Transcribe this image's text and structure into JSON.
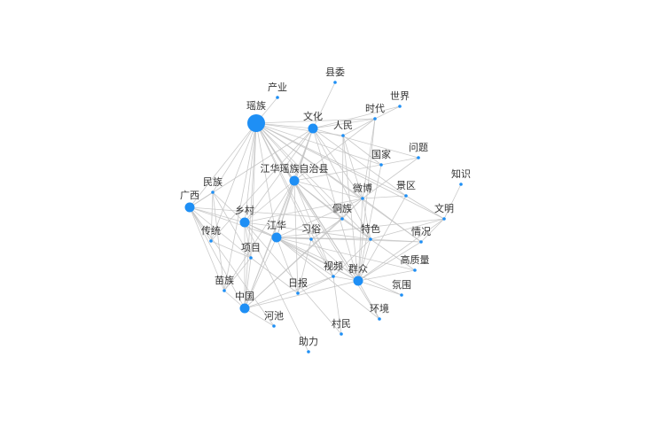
{
  "chart_data": {
    "type": "network",
    "node_color": "#1e8ff5",
    "edge_color": "#c4c4c4",
    "nodes": [
      {
        "id": "yaozu",
        "label": "瑶族",
        "size": "large"
      },
      {
        "id": "wenhua",
        "label": "文化",
        "size": "medium"
      },
      {
        "id": "zizhixian",
        "label": "江华瑶族自治县",
        "size": "medium"
      },
      {
        "id": "guangxi",
        "label": "广西",
        "size": "medium"
      },
      {
        "id": "xiangcun",
        "label": "乡村",
        "size": "medium"
      },
      {
        "id": "jianghua",
        "label": "江华",
        "size": "medium"
      },
      {
        "id": "zhongguo",
        "label": "中国",
        "size": "medium"
      },
      {
        "id": "qunzhong",
        "label": "群众",
        "size": "medium"
      },
      {
        "id": "chanye",
        "label": "产业",
        "size": "small"
      },
      {
        "id": "xianwei",
        "label": "县委",
        "size": "small"
      },
      {
        "id": "shijie",
        "label": "世界",
        "size": "small"
      },
      {
        "id": "shidai",
        "label": "时代",
        "size": "small"
      },
      {
        "id": "renmin",
        "label": "人民",
        "size": "small"
      },
      {
        "id": "wenti",
        "label": "问题",
        "size": "small"
      },
      {
        "id": "guojia",
        "label": "国家",
        "size": "small"
      },
      {
        "id": "zhishi",
        "label": "知识",
        "size": "small"
      },
      {
        "id": "minzu",
        "label": "民族",
        "size": "small"
      },
      {
        "id": "weibo",
        "label": "微博",
        "size": "small"
      },
      {
        "id": "jingqu",
        "label": "景区",
        "size": "small"
      },
      {
        "id": "dongzu",
        "label": "侗族",
        "size": "small"
      },
      {
        "id": "wenming",
        "label": "文明",
        "size": "small"
      },
      {
        "id": "chuantong",
        "label": "传统",
        "size": "small"
      },
      {
        "id": "xisu",
        "label": "习俗",
        "size": "small"
      },
      {
        "id": "tese",
        "label": "特色",
        "size": "small"
      },
      {
        "id": "qingkuang",
        "label": "情况",
        "size": "small"
      },
      {
        "id": "xiangmu",
        "label": "项目",
        "size": "small"
      },
      {
        "id": "gaozhiliang",
        "label": "高质量",
        "size": "small"
      },
      {
        "id": "shipin",
        "label": "视频",
        "size": "small"
      },
      {
        "id": "miaozu",
        "label": "苗族",
        "size": "small"
      },
      {
        "id": "ribao",
        "label": "日报",
        "size": "small"
      },
      {
        "id": "fenwei",
        "label": "氛围",
        "size": "small"
      },
      {
        "id": "huanjing",
        "label": "环境",
        "size": "small"
      },
      {
        "id": "hechi",
        "label": "河池",
        "size": "small"
      },
      {
        "id": "cunmin",
        "label": "村民",
        "size": "small"
      },
      {
        "id": "zhuli",
        "label": "助力",
        "size": "small"
      }
    ],
    "edges": [
      [
        "yaozu",
        "chanye"
      ],
      [
        "yaozu",
        "wenhua"
      ],
      [
        "yaozu",
        "zizhixian"
      ],
      [
        "yaozu",
        "guangxi"
      ],
      [
        "yaozu",
        "xiangcun"
      ],
      [
        "yaozu",
        "jianghua"
      ],
      [
        "yaozu",
        "zhongguo"
      ],
      [
        "yaozu",
        "qunzhong"
      ],
      [
        "yaozu",
        "minzu"
      ],
      [
        "yaozu",
        "renmin"
      ],
      [
        "yaozu",
        "guojia"
      ],
      [
        "yaozu",
        "weibo"
      ],
      [
        "yaozu",
        "dongzu"
      ],
      [
        "yaozu",
        "xisu"
      ],
      [
        "yaozu",
        "tese"
      ],
      [
        "yaozu",
        "chuantong"
      ],
      [
        "yaozu",
        "xiangmu"
      ],
      [
        "yaozu",
        "shipin"
      ],
      [
        "yaozu",
        "miaozu"
      ],
      [
        "yaozu",
        "shidai"
      ],
      [
        "yaozu",
        "wenming"
      ],
      [
        "yaozu",
        "jingqu"
      ],
      [
        "yaozu",
        "qingkuang"
      ],
      [
        "yaozu",
        "huanjing"
      ],
      [
        "wenhua",
        "shijie"
      ],
      [
        "wenhua",
        "shidai"
      ],
      [
        "wenhua",
        "xianwei"
      ],
      [
        "wenhua",
        "zizhixian"
      ],
      [
        "wenhua",
        "guangxi"
      ],
      [
        "wenhua",
        "xiangcun"
      ],
      [
        "wenhua",
        "jianghua"
      ],
      [
        "wenhua",
        "qunzhong"
      ],
      [
        "wenhua",
        "zhongguo"
      ],
      [
        "wenhua",
        "weibo"
      ],
      [
        "wenhua",
        "tese"
      ],
      [
        "wenhua",
        "chuantong"
      ],
      [
        "wenhua",
        "jingqu"
      ],
      [
        "wenhua",
        "wenti"
      ],
      [
        "zizhixian",
        "jianghua"
      ],
      [
        "zizhixian",
        "xiangcun"
      ],
      [
        "zizhixian",
        "qunzhong"
      ],
      [
        "zizhixian",
        "weibo"
      ],
      [
        "zizhixian",
        "dongzu"
      ],
      [
        "zizhixian",
        "shipin"
      ],
      [
        "zizhixian",
        "zhongguo"
      ],
      [
        "zizhixian",
        "guojia"
      ],
      [
        "zizhixian",
        "tese"
      ],
      [
        "zizhixian",
        "shidai"
      ],
      [
        "zizhixian",
        "ribao"
      ],
      [
        "zizhixian",
        "miaozu"
      ],
      [
        "guangxi",
        "minzu"
      ],
      [
        "guangxi",
        "xiangcun"
      ],
      [
        "guangxi",
        "jianghua"
      ],
      [
        "guangxi",
        "zhongguo"
      ],
      [
        "guangxi",
        "chuantong"
      ],
      [
        "guangxi",
        "miaozu"
      ],
      [
        "guangxi",
        "xiangmu"
      ],
      [
        "guangxi",
        "dongzu"
      ],
      [
        "guangxi",
        "hechi"
      ],
      [
        "xiangcun",
        "jianghua"
      ],
      [
        "xiangcun",
        "zhongguo"
      ],
      [
        "xiangcun",
        "xiangmu"
      ],
      [
        "xiangcun",
        "qunzhong"
      ],
      [
        "xiangcun",
        "tese"
      ],
      [
        "xiangcun",
        "minzu"
      ],
      [
        "xiangcun",
        "cunmin"
      ],
      [
        "xiangcun",
        "zhuli"
      ],
      [
        "xiangcun",
        "weibo"
      ],
      [
        "jianghua",
        "qunzhong"
      ],
      [
        "jianghua",
        "shipin"
      ],
      [
        "jianghua",
        "zhongguo"
      ],
      [
        "jianghua",
        "tese"
      ],
      [
        "jianghua",
        "xisu"
      ],
      [
        "jianghua",
        "ribao"
      ],
      [
        "jianghua",
        "huanjing"
      ],
      [
        "jianghua",
        "fenwei"
      ],
      [
        "jianghua",
        "gaozhiliang"
      ],
      [
        "jianghua",
        "weibo"
      ],
      [
        "jianghua",
        "qingkuang"
      ],
      [
        "jianghua",
        "wenming"
      ],
      [
        "zhongguo",
        "qunzhong"
      ],
      [
        "zhongguo",
        "shipin"
      ],
      [
        "zhongguo",
        "weibo"
      ],
      [
        "zhongguo",
        "xiangmu"
      ],
      [
        "zhongguo",
        "miaozu"
      ],
      [
        "zhongguo",
        "hechi"
      ],
      [
        "zhongguo",
        "dongzu"
      ],
      [
        "qunzhong",
        "weibo"
      ],
      [
        "qunzhong",
        "tese"
      ],
      [
        "qunzhong",
        "shipin"
      ],
      [
        "qunzhong",
        "fenwei"
      ],
      [
        "qunzhong",
        "huanjing"
      ],
      [
        "qunzhong",
        "gaozhiliang"
      ],
      [
        "qunzhong",
        "wenming"
      ],
      [
        "qunzhong",
        "qingkuang"
      ],
      [
        "qunzhong",
        "jingqu"
      ],
      [
        "qunzhong",
        "renmin"
      ],
      [
        "qunzhong",
        "guojia"
      ],
      [
        "qunzhong",
        "shidai"
      ],
      [
        "qunzhong",
        "xisu"
      ],
      [
        "weibo",
        "jingqu"
      ],
      [
        "weibo",
        "wenti"
      ],
      [
        "weibo",
        "shidai"
      ],
      [
        "weibo",
        "tese"
      ],
      [
        "weibo",
        "dongzu"
      ],
      [
        "weibo",
        "qingkuang"
      ],
      [
        "weibo",
        "renmin"
      ],
      [
        "shipin",
        "tese"
      ],
      [
        "shipin",
        "ribao"
      ],
      [
        "shipin",
        "cunmin"
      ],
      [
        "shipin",
        "xisu"
      ],
      [
        "tese",
        "qingkuang"
      ],
      [
        "tese",
        "wenming"
      ],
      [
        "tese",
        "gaozhiliang"
      ],
      [
        "tese",
        "dongzu"
      ],
      [
        "wenming",
        "zhishi"
      ],
      [
        "wenming",
        "jingqu"
      ],
      [
        "wenming",
        "qingkuang"
      ],
      [
        "guojia",
        "wenti"
      ],
      [
        "guojia",
        "renmin"
      ],
      [
        "renmin",
        "shidai"
      ],
      [
        "shidai",
        "shijie"
      ],
      [
        "xiangmu",
        "miaozu"
      ],
      [
        "xiangmu",
        "chuantong"
      ],
      [
        "xiangmu",
        "ribao"
      ],
      [
        "minzu",
        "chuantong"
      ],
      [
        "minzu",
        "miaozu"
      ],
      [
        "minzu",
        "xiangmu"
      ],
      [
        "dongzu",
        "xisu"
      ],
      [
        "dongzu",
        "renmin"
      ],
      [
        "xisu",
        "ribao"
      ]
    ]
  }
}
